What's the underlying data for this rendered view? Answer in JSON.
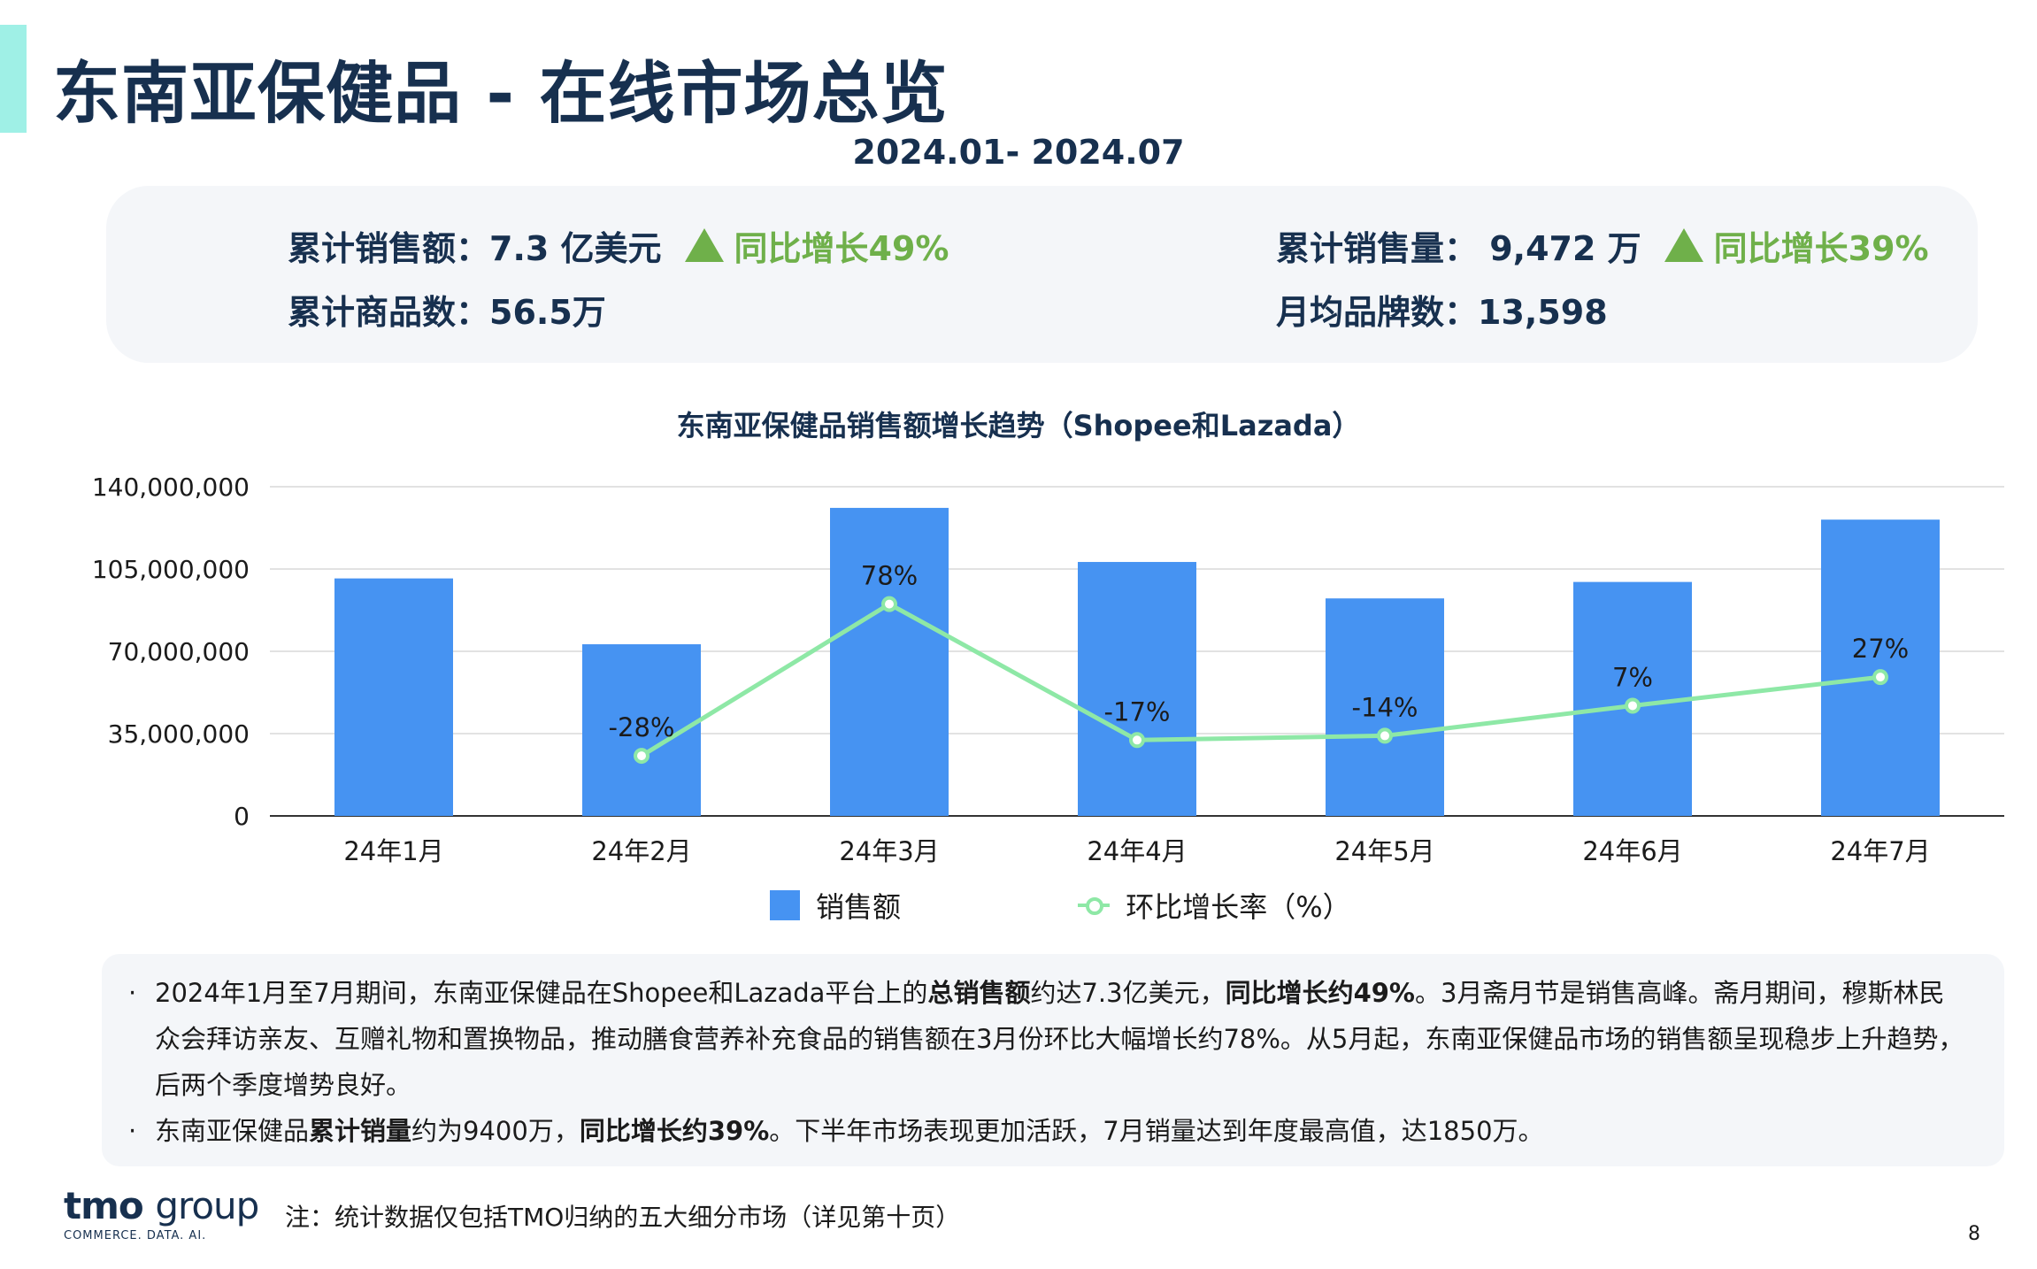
{
  "header": {
    "title": "东南亚保健品 - 在线市场总览",
    "date_range": "2024.01- 2024.07"
  },
  "kpis": {
    "sales_label": "累计销售额：7.3 亿美元",
    "sales_growth": "同比增长49%",
    "products_label": "累计商品数：56.5万",
    "volume_label": "累计销售量： 9,472 万",
    "volume_growth": "同比增长39%",
    "brands_label": "月均品牌数：13,598"
  },
  "colors": {
    "bar": "#4693f2",
    "line": "#8ee8a6",
    "growth_green": "#6fb04a",
    "title_navy": "#17304f",
    "accent_teal": "#9ff0e6"
  },
  "chart_data": {
    "type": "bar",
    "title": "东南亚保健品销售额增长趋势（Shopee和Lazada）",
    "categories": [
      "24年1月",
      "24年2月",
      "24年3月",
      "24年4月",
      "24年5月",
      "24年6月",
      "24年7月"
    ],
    "series": [
      {
        "name": "销售额",
        "type": "bar",
        "values": [
          101000000,
          73000000,
          131000000,
          108000000,
          92500000,
          99500000,
          126000000
        ]
      },
      {
        "name": "环比增长率（%）",
        "type": "line",
        "secondary_axis": true,
        "values": [
          null,
          -28,
          78,
          -17,
          -14,
          7,
          27
        ],
        "labels": [
          "",
          "-28%",
          "78%",
          "-17%",
          "-14%",
          "7%",
          "27%"
        ]
      }
    ],
    "yticks": [
      "0",
      "35,000,000",
      "70,000,000",
      "105,000,000",
      "140,000,000"
    ],
    "ylim": [
      0,
      140000000
    ],
    "y2lim": [
      -70,
      160
    ],
    "grid": true,
    "legend": "bottom"
  },
  "notes": {
    "n1_a": "2024年1月至7月期间，东南亚保健品在Shopee和Lazada平台上的",
    "n1_b": "总销售额",
    "n1_c": "约达7.3亿美元，",
    "n1_d": "同比增长约49%",
    "n1_e": "。3月斋月节是销售高峰。斋月期间，穆斯林民众会拜访亲友、互赠礼物和置换物品，推动膳食营养补充食品的销售额在3月份环比大幅增长约78%。从5月起，东南亚保健品市场的销售额呈现稳步上升趋势，后两个季度增势良好。",
    "n2_a": "东南亚保健品",
    "n2_b": "累计销量",
    "n2_c": "约为9400万，",
    "n2_d": "同比增长约39%",
    "n2_e": "。下半年市场表现更加活跃，7月销量达到年度最高值，达1850万。",
    "bullet": "·"
  },
  "footer": {
    "logo_tmo": "tmo",
    "logo_group": "group",
    "logo_tagline": "COMMERCE. DATA. AI.",
    "footnote": "注：统计数据仅包括TMO归纳的五大细分市场（详见第十页）",
    "page_number": "8"
  }
}
